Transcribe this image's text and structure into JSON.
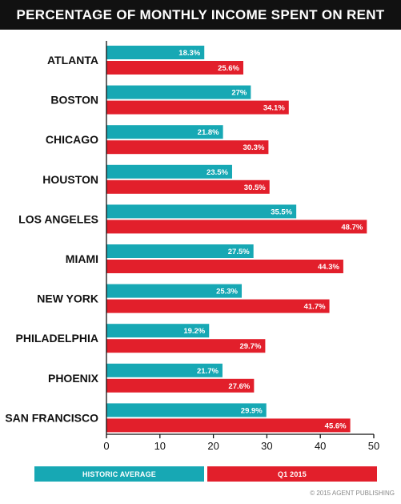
{
  "colors": {
    "historic": "#17a8b4",
    "q1": "#e21f2b",
    "title_bg": "#111111"
  },
  "chart_data": {
    "type": "bar",
    "orientation": "horizontal",
    "title": "PERCENTAGE OF MONTHLY INCOME SPENT ON RENT",
    "categories": [
      "ATLANTA",
      "BOSTON",
      "CHICAGO",
      "HOUSTON",
      "LOS ANGELES",
      "MIAMI",
      "NEW YORK",
      "PHILADELPHIA",
      "PHOENIX",
      "SAN FRANCISCO"
    ],
    "series": [
      {
        "name": "HISTORIC AVERAGE",
        "values": [
          18.3,
          27,
          21.8,
          23.5,
          35.5,
          27.5,
          25.3,
          19.2,
          21.7,
          29.9
        ],
        "labels": [
          "18.3%",
          "27%",
          "21.8%",
          "23.5%",
          "35.5%",
          "27.5%",
          "25.3%",
          "19.2%",
          "21.7%",
          "29.9%"
        ]
      },
      {
        "name": "Q1 2015",
        "values": [
          25.6,
          34.1,
          30.3,
          30.5,
          48.7,
          44.3,
          41.7,
          29.7,
          27.6,
          45.6
        ],
        "labels": [
          "25.6%",
          "34.1%",
          "30.3%",
          "30.5%",
          "48.7%",
          "44.3%",
          "41.7%",
          "29.7%",
          "27.6%",
          "45.6%"
        ]
      }
    ],
    "xlim": [
      0,
      50
    ],
    "xticks": [
      0,
      10,
      20,
      30,
      40,
      50
    ],
    "legend": "bottom"
  },
  "footer": "© 2015 AGENT PUBLISHING"
}
